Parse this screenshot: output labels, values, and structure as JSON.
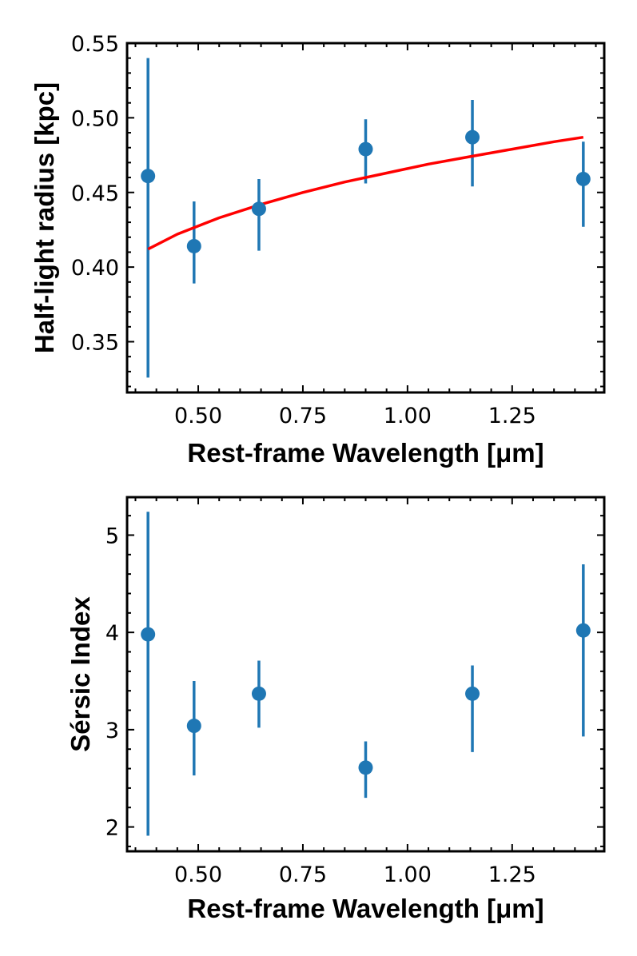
{
  "chart_data": [
    {
      "type": "scatter",
      "title": "",
      "xlabel": "Rest-frame Wavelength [μm]",
      "ylabel": "Half-light radius [kpc]",
      "xlim": [
        0.33,
        1.47
      ],
      "ylim": [
        0.316,
        0.55
      ],
      "xticks": [
        "0.50",
        "0.75",
        "1.00",
        "1.25"
      ],
      "yticks": [
        "0.35",
        "0.40",
        "0.45",
        "0.50",
        "0.55"
      ],
      "grid": false,
      "colors": {
        "points": "#1f77b4",
        "fit": "#ff0000"
      },
      "series": [
        {
          "name": "data",
          "x": [
            0.38,
            0.49,
            0.645,
            0.9,
            1.155,
            1.42
          ],
          "y": [
            0.461,
            0.414,
            0.439,
            0.479,
            0.487,
            0.459
          ],
          "yerr_low": [
            0.326,
            0.389,
            0.411,
            0.456,
            0.454,
            0.427
          ],
          "yerr_high": [
            0.54,
            0.444,
            0.459,
            0.499,
            0.512,
            0.484
          ]
        },
        {
          "name": "fit",
          "type": "line",
          "x": [
            0.38,
            0.45,
            0.55,
            0.65,
            0.75,
            0.85,
            0.95,
            1.05,
            1.15,
            1.25,
            1.35,
            1.42
          ],
          "y": [
            0.412,
            0.422,
            0.433,
            0.442,
            0.45,
            0.457,
            0.463,
            0.469,
            0.474,
            0.479,
            0.484,
            0.487
          ]
        }
      ]
    },
    {
      "type": "scatter",
      "title": "",
      "xlabel": "Rest-frame Wavelength [μm]",
      "ylabel": "Sérsic Index",
      "xlim": [
        0.33,
        1.47
      ],
      "ylim": [
        1.75,
        5.39
      ],
      "xticks": [
        "0.50",
        "0.75",
        "1.00",
        "1.25"
      ],
      "yticks": [
        "2",
        "3",
        "4",
        "5"
      ],
      "grid": false,
      "colors": {
        "points": "#1f77b4"
      },
      "series": [
        {
          "name": "data",
          "x": [
            0.38,
            0.49,
            0.645,
            0.9,
            1.155,
            1.42
          ],
          "y": [
            3.98,
            3.04,
            3.37,
            2.61,
            3.37,
            4.02
          ],
          "yerr_low": [
            1.91,
            2.53,
            3.02,
            2.3,
            2.77,
            2.93
          ],
          "yerr_high": [
            5.24,
            3.5,
            3.71,
            2.88,
            3.66,
            4.7
          ]
        }
      ]
    }
  ]
}
